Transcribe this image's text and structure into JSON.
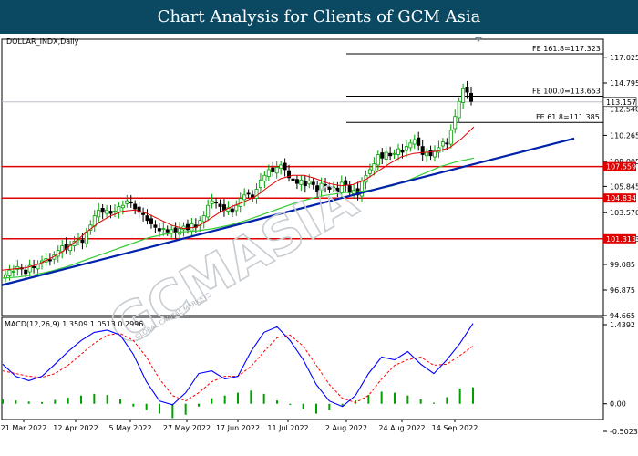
{
  "banner_title": "Chart Analysis for Clients of GCM Asia",
  "symbol_label": "DOLLAR_INDX,Daily",
  "macd_label": "MACD(12,26,9) 1.3509 1.0513 0.2996",
  "watermark": "GCMASIA",
  "watermark_sub": "GLOBAL CAPITAL MARKETS",
  "colors": {
    "banner": "#0b4963",
    "candle_up": "#00a000",
    "candle_down": "#000000",
    "ma_fast": "#e00000",
    "ma_slow": "#33cc33",
    "trendline": "#0022aa",
    "support": "#e00000",
    "macd_line": "#0000ff",
    "signal_line": "#ff0000",
    "histogram": "#00a000"
  },
  "chart_data": {
    "type": "line",
    "title": "Chart Analysis for Clients of GCM Asia",
    "price_axis": {
      "range": [
        94.665,
        117.323
      ],
      "ticks": [
        117.025,
        114.795,
        112.54,
        110.265,
        108.005,
        105.845,
        103.57,
        101.313,
        99.085,
        96.875,
        94.665
      ],
      "current_price": 113.157
    },
    "x_ticks": [
      "21 Mar 2022",
      "12 Apr 2022",
      "5 May 2022",
      "27 May 2022",
      "17 Jun 2022",
      "11 Jul 2022",
      "2 Aug 2022",
      "24 Aug 2022",
      "14 Sep 2022"
    ],
    "close_price_approx": [
      98.2,
      98.6,
      98.5,
      98.9,
      98.7,
      98.3,
      99.0,
      98.8,
      99.1,
      99.4,
      99.6,
      99.4,
      99.9,
      100.3,
      100.7,
      100.4,
      100.8,
      101.1,
      101.3,
      101.0,
      101.9,
      102.5,
      103.3,
      103.8,
      103.6,
      103.8,
      103.5,
      103.7,
      104.1,
      104.2,
      104.6,
      104.4,
      103.9,
      103.6,
      103.4,
      102.9,
      102.6,
      102.3,
      102.0,
      102.2,
      101.9,
      102.1,
      101.8,
      102.2,
      102.4,
      102.1,
      102.6,
      102.3,
      102.9,
      103.3,
      104.2,
      104.6,
      104.4,
      104.1,
      103.8,
      104.0,
      103.6,
      104.2,
      104.8,
      105.1,
      105.2,
      104.9,
      105.6,
      106.4,
      106.8,
      107.3,
      107.1,
      107.5,
      107.7,
      107.3,
      106.6,
      106.3,
      106.1,
      106.4,
      105.9,
      106.3,
      106.0,
      105.4,
      106.1,
      105.9,
      105.6,
      105.8,
      105.4,
      106.2,
      106.0,
      105.3,
      105.5,
      105.1,
      106.3,
      106.8,
      107.3,
      107.8,
      108.6,
      108.3,
      108.8,
      108.5,
      108.7,
      109.1,
      108.8,
      109.3,
      109.6,
      109.9,
      109.4,
      108.6,
      108.8,
      108.5,
      108.9,
      109.2,
      109.7,
      109.6,
      110.7,
      111.9,
      113.2,
      114.3,
      114.0,
      113.2
    ],
    "ma_fast_approx": [
      98.6,
      98.7,
      98.8,
      99.1,
      99.6,
      100.2,
      101.0,
      101.9,
      102.7,
      103.3,
      103.7,
      103.8,
      103.5,
      103.0,
      102.5,
      102.2,
      102.3,
      102.9,
      103.6,
      104.1,
      104.5,
      105.0,
      105.8,
      106.5,
      106.8,
      106.8,
      106.5,
      106.1,
      105.9,
      106.0,
      106.4,
      107.1,
      107.8,
      108.4,
      108.7,
      108.8,
      108.9,
      109.2,
      110.0,
      111.0
    ],
    "ma_slow_approx": [
      97.9,
      98.0,
      98.2,
      98.5,
      98.9,
      99.4,
      99.9,
      100.4,
      100.9,
      101.4,
      101.7,
      101.9,
      102.0,
      102.2,
      102.5,
      102.9,
      103.4,
      103.9,
      104.4,
      104.8,
      105.1,
      105.3,
      105.4,
      105.6,
      105.9,
      106.4,
      107.0,
      107.6,
      108.0,
      108.3
    ],
    "fibonacci_levels": [
      {
        "label": "FE 161.8=117.323",
        "value": 117.323
      },
      {
        "label": "FE 100.0=113.653",
        "value": 113.653
      },
      {
        "label": "FE 61.8=111.385",
        "value": 111.385
      }
    ],
    "support_levels": [
      107.559,
      104.834,
      101.313
    ],
    "trendline": {
      "from": [
        "21 Mar 2022",
        97.3
      ],
      "to": [
        "end",
        110.0
      ]
    },
    "macd": {
      "params": "MACD(12,26,9)",
      "values": [
        1.3509,
        1.0513,
        0.2996
      ],
      "axis_ticks": [
        1.4392,
        0.0,
        -0.5023
      ],
      "macd_line_approx": [
        0.72,
        0.5,
        0.42,
        0.5,
        0.72,
        0.95,
        1.15,
        1.3,
        1.34,
        1.25,
        0.9,
        0.4,
        0.05,
        -0.02,
        0.2,
        0.55,
        0.6,
        0.45,
        0.5,
        0.95,
        1.3,
        1.4,
        1.15,
        0.8,
        0.35,
        0.05,
        -0.05,
        0.15,
        0.55,
        0.85,
        0.8,
        0.95,
        0.72,
        0.55,
        0.8,
        1.1,
        1.46
      ],
      "signal_line_approx": [
        0.6,
        0.55,
        0.5,
        0.48,
        0.55,
        0.7,
        0.9,
        1.1,
        1.25,
        1.28,
        1.15,
        0.85,
        0.45,
        0.15,
        0.05,
        0.2,
        0.4,
        0.5,
        0.5,
        0.68,
        0.95,
        1.2,
        1.25,
        1.05,
        0.7,
        0.35,
        0.1,
        0.02,
        0.15,
        0.45,
        0.7,
        0.8,
        0.85,
        0.7,
        0.72,
        0.88,
        1.05
      ],
      "histogram_approx": [
        0.08,
        0.06,
        0.04,
        0.03,
        0.07,
        0.11,
        0.15,
        0.18,
        0.16,
        0.08,
        -0.05,
        -0.12,
        -0.18,
        -0.26,
        -0.2,
        -0.05,
        0.1,
        0.15,
        0.2,
        0.24,
        0.18,
        0.06,
        -0.02,
        -0.1,
        -0.18,
        -0.12,
        -0.04,
        0.06,
        0.16,
        0.22,
        0.2,
        0.15,
        0.08,
        0.02,
        0.12,
        0.28,
        0.3
      ]
    }
  }
}
